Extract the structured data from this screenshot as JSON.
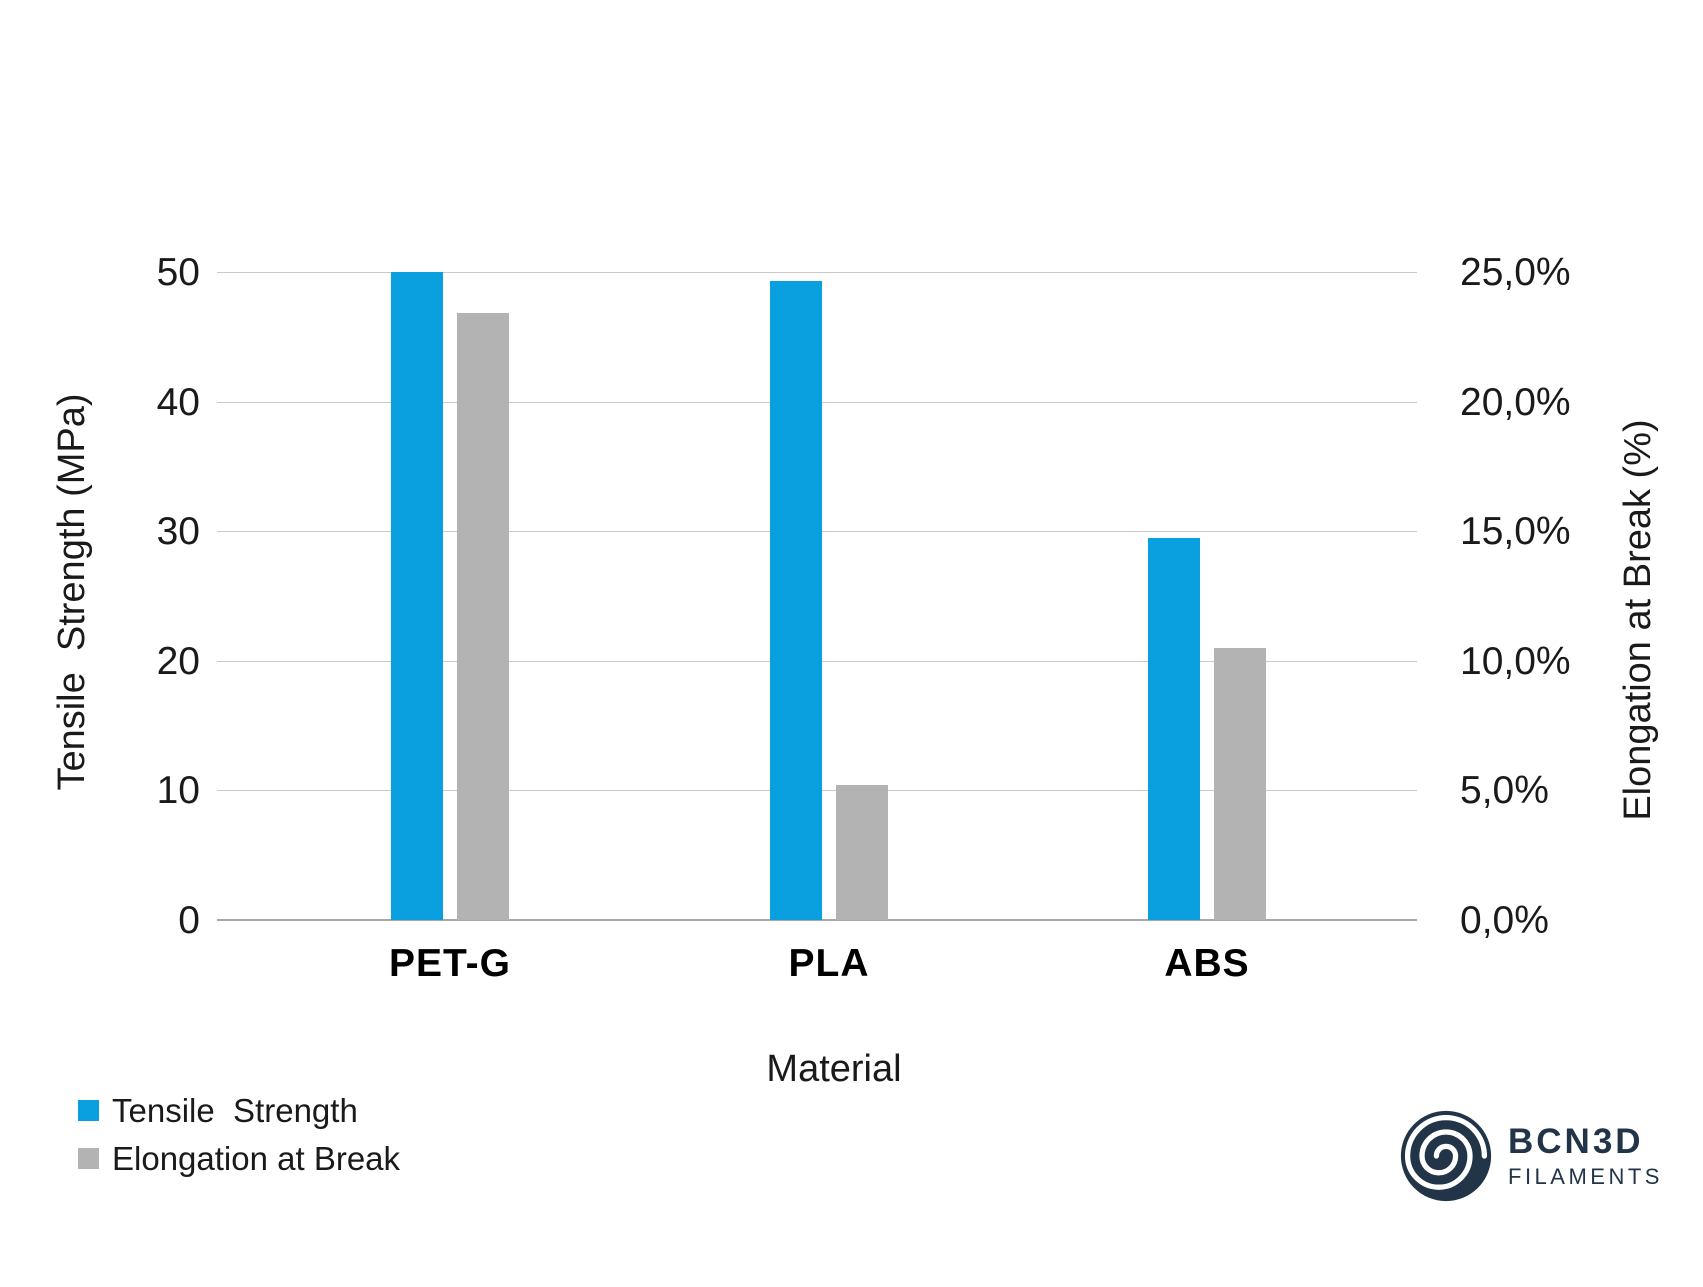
{
  "chart_data": {
    "type": "bar",
    "title": "",
    "categories": [
      "PET-G",
      "PLA",
      "ABS"
    ],
    "series": [
      {
        "name": "Tensile  Strength",
        "axis": "left",
        "unit": "MPa",
        "color": "#0aa0df",
        "values": [
          50.0,
          49.3,
          29.5
        ]
      },
      {
        "name": "Elongation at Break",
        "axis": "right",
        "unit": "%",
        "color": "#b3b3b3",
        "values": [
          23.4,
          5.2,
          10.5
        ]
      }
    ],
    "xlabel": "Material",
    "left_axis": {
      "label": "Tensile  Strength (MPa)",
      "min": 0,
      "max": 50,
      "tick_labels": [
        "50",
        "40",
        "30",
        "20",
        "10",
        "0"
      ]
    },
    "right_axis": {
      "label": "Elongation at Break (%)",
      "min": 0,
      "max": 25,
      "tick_labels": [
        "25,0%",
        "20,0%",
        "15,0%",
        "10,0%",
        "5,0%",
        "0,0%"
      ]
    },
    "grid": true,
    "legend_position": "bottom-left"
  },
  "colors": {
    "blue": "#0aa0df",
    "gray": "#b3b3b3",
    "gridline": "#c9c9c9",
    "axis_line": "#a8a8a8",
    "text": "#1a1a1a",
    "navy": "#223548"
  },
  "branding": {
    "name": "BCN3D",
    "sub": "FILAMENTS",
    "icon": "spiral-icon"
  }
}
